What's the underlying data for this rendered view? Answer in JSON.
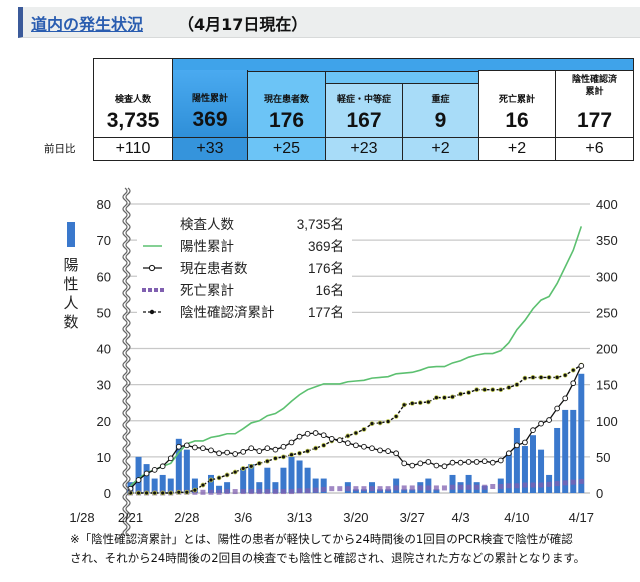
{
  "header": {
    "title_link": "道内の発生状況",
    "date": "（4月17日現在）"
  },
  "table": {
    "row_label": "前日比",
    "columns": [
      {
        "label": "検査人数",
        "value": "3,735",
        "diff": "+110"
      },
      {
        "label": "陽性累計",
        "value": "369",
        "diff": "+33"
      },
      {
        "label": "現在患者数",
        "value": "176",
        "diff": "+25"
      },
      {
        "label": "軽症・中等症",
        "value": "167",
        "diff": "+23"
      },
      {
        "label": "重症",
        "value": "9",
        "diff": "+2"
      },
      {
        "label": "死亡累計",
        "value": "16",
        "diff": "+2"
      },
      {
        "label": "陰性確認済\n累計",
        "label_line1": "陰性確認済",
        "label_line2": "累計",
        "value": "177",
        "diff": "+6"
      }
    ],
    "colors": {
      "band": "#3fa3ea",
      "positive": "#3a9be6",
      "current": "#6cc4f6",
      "sub": "#a8dcf8"
    }
  },
  "chart_data": {
    "type": "bar+line",
    "ylabel_left": "陽性人数",
    "ylim_left": [
      0,
      80
    ],
    "yticks_left": [
      "0",
      "10",
      "20",
      "30",
      "40",
      "50",
      "60",
      "70",
      "80"
    ],
    "ylim_right": [
      0,
      400
    ],
    "yticks_right": [
      "0",
      "50",
      "100",
      "150",
      "200",
      "250",
      "300",
      "350",
      "400"
    ],
    "xtick_labels": [
      "1/28",
      "2/21",
      "2/28",
      "3/6",
      "3/13",
      "3/20",
      "3/27",
      "4/3",
      "4/10",
      "4/17"
    ],
    "x_start": "2/21",
    "x_end": "4/17",
    "grid": true,
    "legend_placement": "top-left",
    "legend": [
      {
        "name": "検査人数",
        "value": "3,735名",
        "marker": "none"
      },
      {
        "name": "陽性累計",
        "value": "369名",
        "marker": "green-line"
      },
      {
        "name": "現在患者数",
        "value": "176名",
        "marker": "open-circle-line"
      },
      {
        "name": "死亡累計",
        "value": "16名",
        "marker": "purple-square-dotted"
      },
      {
        "name": "陰性確認済累計",
        "value": "177名",
        "marker": "black-dot-dashed"
      }
    ],
    "series": [
      {
        "key": "daily",
        "axis": "left",
        "type": "bar",
        "color": "#3a78cc",
        "values": [
          3,
          10,
          8,
          4,
          5,
          4,
          15,
          12,
          4,
          0,
          5,
          2,
          3,
          0,
          7,
          8,
          3,
          7,
          3,
          7,
          10,
          9,
          7,
          4,
          4,
          0,
          0,
          3,
          1,
          1,
          3,
          1,
          1,
          4,
          1,
          1,
          3,
          4,
          1,
          0,
          5,
          3,
          5,
          3,
          2,
          0,
          4,
          11,
          18,
          13,
          16,
          12,
          5,
          18,
          23,
          23,
          33
        ]
      },
      {
        "key": "cumulative",
        "name": "陽性累計",
        "axis": "right",
        "type": "line",
        "color": "#5cc070",
        "values": [
          10,
          20,
          28,
          32,
          37,
          41,
          56,
          68,
          72,
          72,
          77,
          79,
          82,
          82,
          89,
          97,
          100,
          107,
          110,
          117,
          127,
          136,
          143,
          147,
          151,
          151,
          151,
          154,
          155,
          156,
          159,
          160,
          161,
          165,
          166,
          167,
          170,
          174,
          175,
          175,
          180,
          183,
          188,
          191,
          193,
          193,
          197,
          208,
          226,
          239,
          255,
          267,
          272,
          290,
          313,
          336,
          369
        ]
      },
      {
        "key": "current",
        "name": "現在患者数",
        "axis": "right",
        "type": "line",
        "color": "#111111",
        "values": [
          6,
          18,
          27,
          32,
          37,
          48,
          64,
          66,
          63,
          62,
          59,
          55,
          56,
          54,
          57,
          62,
          58,
          62,
          60,
          64,
          70,
          78,
          82,
          83,
          80,
          75,
          73,
          69,
          66,
          64,
          62,
          59,
          58,
          55,
          41,
          38,
          41,
          43,
          38,
          37,
          42,
          42,
          43,
          43,
          44,
          42,
          45,
          55,
          66,
          70,
          87,
          96,
          101,
          117,
          131,
          152,
          176
        ]
      },
      {
        "key": "deaths",
        "name": "死亡累計",
        "axis": "right",
        "type": "line",
        "color": "#8060b0",
        "values": [
          0,
          0,
          0,
          0,
          0,
          0,
          1,
          1,
          1,
          1,
          1,
          1,
          2,
          2,
          2,
          2,
          2,
          2,
          2,
          2,
          2,
          3,
          3,
          4,
          5,
          6,
          6,
          6,
          6,
          6,
          6,
          6,
          6,
          7,
          7,
          7,
          7,
          7,
          7,
          7,
          8,
          8,
          8,
          8,
          8,
          9,
          9,
          10,
          10,
          11,
          11,
          11,
          12,
          13,
          14,
          15,
          16
        ]
      },
      {
        "key": "recovered",
        "name": "陰性確認済累計",
        "axis": "right",
        "type": "line",
        "color": "#111111",
        "values": [
          0,
          0,
          0,
          0,
          0,
          0,
          1,
          1,
          4,
          11,
          18,
          21,
          25,
          29,
          34,
          37,
          41,
          44,
          48,
          50,
          53,
          55,
          58,
          62,
          66,
          72,
          74,
          79,
          83,
          88,
          96,
          97,
          99,
          106,
          122,
          124,
          125,
          126,
          132,
          132,
          133,
          137,
          139,
          143,
          143,
          143,
          143,
          146,
          150,
          159,
          160,
          160,
          160,
          160,
          163,
          170,
          177
        ]
      }
    ]
  },
  "note": {
    "line1": "※「陰性確認済累計」とは、陽性の患者が軽快してから24時間後の1回目のPCR検査で陰性が確認",
    "line2": "され、それから24時間後の2回目の検査でも陰性と確認され、退院された方などの累計となります。"
  }
}
